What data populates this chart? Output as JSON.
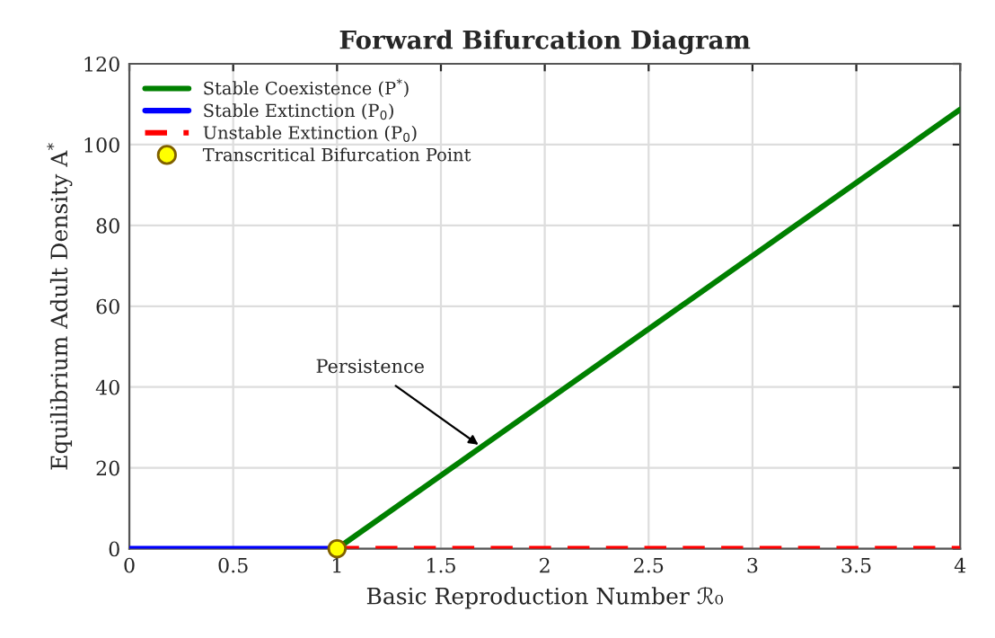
{
  "chart_data": {
    "type": "line",
    "title": "Forward Bifurcation Diagram",
    "xlabel": "Basic Reproduction Number ℛ₀",
    "ylabel": "Equilibrium Adult Density A$^{*}$",
    "series": [
      {
        "name": "Stable Coexistence (P$^{*}$)",
        "color": "#008000",
        "x": [
          1,
          4
        ],
        "values": [
          0,
          108.7
        ],
        "line_style": "solid"
      },
      {
        "name": "Stable Extinction (P$_{0}$)",
        "color": "#0000ff",
        "x": [
          0,
          1
        ],
        "values": [
          0,
          0
        ],
        "line_style": "solid"
      },
      {
        "name": "Unstable Extinction (P$_{0}$)",
        "color": "#ff0000",
        "x": [
          1,
          4
        ],
        "values": [
          0,
          0
        ],
        "line_style": "dashed"
      },
      {
        "name": "Transcritical Bifurcation Point",
        "type": "scatter",
        "color": "#ffff00",
        "x": [
          1
        ],
        "values": [
          0
        ],
        "marker": "circle"
      }
    ],
    "annotations": [
      {
        "text": "Persistence",
        "x": 1.7,
        "y": 25
      }
    ],
    "xlim": [
      0,
      4
    ],
    "ylim": [
      0,
      120
    ],
    "xticks": [
      0,
      0.5,
      1,
      1.5,
      2,
      2.5,
      3,
      3.5,
      4
    ],
    "yticks": [
      0,
      20,
      40,
      60,
      80,
      100,
      120
    ],
    "grid": true,
    "legend": "top left"
  }
}
